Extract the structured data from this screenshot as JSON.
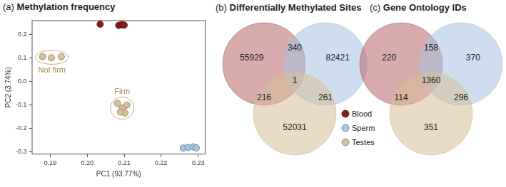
{
  "chart_data": [
    {
      "type": "scatter",
      "panel": "(a)",
      "title": "Methylation frequency",
      "x_label": "PC1 (93.77%)",
      "y_label": "PC2 (3.74%)",
      "xlim": [
        0.185,
        0.232
      ],
      "xticks": [
        0.19,
        {
          "value": 0.2,
          "label": "0.20"
        },
        0.21,
        0.22,
        0.23
      ],
      "ylim": [
        -0.31,
        0.26
      ],
      "yticks": [
        -0.3,
        -0.2,
        -0.1,
        {
          "value": 0,
          "label": "0.0"
        },
        0.1,
        0.2
      ],
      "grid": false,
      "legend": "right",
      "series": [
        {
          "name": "Blood",
          "color": "#8b1a1a",
          "x": [
            0.2035,
            0.2085,
            0.209,
            0.2095,
            0.21
          ],
          "y": [
            0.243,
            0.238,
            0.24,
            0.241,
            0.239
          ]
        },
        {
          "name": "Sperm",
          "color": "#a6c4e4",
          "x": [
            0.226,
            0.2273,
            0.2287,
            0.2295
          ],
          "y": [
            -0.283,
            -0.28,
            -0.278,
            -0.282
          ]
        },
        {
          "name": "Testes",
          "color": "#d8c09c",
          "x": [
            0.1879,
            0.1903,
            0.193,
            0.2082,
            0.2095,
            0.2107,
            0.2102,
            0.209
          ],
          "y": [
            0.105,
            0.1,
            0.105,
            -0.093,
            -0.114,
            -0.1,
            -0.134,
            -0.13
          ],
          "groups": [
            "Not firm",
            "Not firm",
            "Not firm",
            "Firm",
            "Firm",
            "Firm",
            "Firm",
            "Firm"
          ]
        }
      ]
    },
    {
      "type": "venn",
      "panel": "(b)",
      "title": "Differentially Methylated Sites",
      "sets": [
        {
          "name": "Blood",
          "color": "#b8666a"
        },
        {
          "name": "Sperm",
          "color": "#a8c3e0"
        },
        {
          "name": "Testes",
          "color": "#d6bf98"
        }
      ],
      "regions": [
        {
          "sets": [
            "Blood"
          ],
          "value": 55929
        },
        {
          "sets": [
            "Sperm"
          ],
          "value": 82421
        },
        {
          "sets": [
            "Testes"
          ],
          "value": 52031
        },
        {
          "sets": [
            "Blood",
            "Sperm"
          ],
          "value": 340
        },
        {
          "sets": [
            "Blood",
            "Testes"
          ],
          "value": 216
        },
        {
          "sets": [
            "Sperm",
            "Testes"
          ],
          "value": 261
        },
        {
          "sets": [
            "Blood",
            "Sperm",
            "Testes"
          ],
          "value": 1
        }
      ]
    },
    {
      "type": "venn",
      "panel": "(c)",
      "title": "Gene Ontology IDs",
      "sets": [
        {
          "name": "Blood",
          "color": "#b8666a"
        },
        {
          "name": "Sperm",
          "color": "#a8c3e0"
        },
        {
          "name": "Testes",
          "color": "#d6bf98"
        }
      ],
      "regions": [
        {
          "sets": [
            "Blood"
          ],
          "value": 220
        },
        {
          "sets": [
            "Sperm"
          ],
          "value": 370
        },
        {
          "sets": [
            "Testes"
          ],
          "value": 351
        },
        {
          "sets": [
            "Blood",
            "Sperm"
          ],
          "value": 158
        },
        {
          "sets": [
            "Blood",
            "Testes"
          ],
          "value": 114
        },
        {
          "sets": [
            "Sperm",
            "Testes"
          ],
          "value": 296
        },
        {
          "sets": [
            "Blood",
            "Sperm",
            "Testes"
          ],
          "value": 1360
        }
      ]
    }
  ]
}
